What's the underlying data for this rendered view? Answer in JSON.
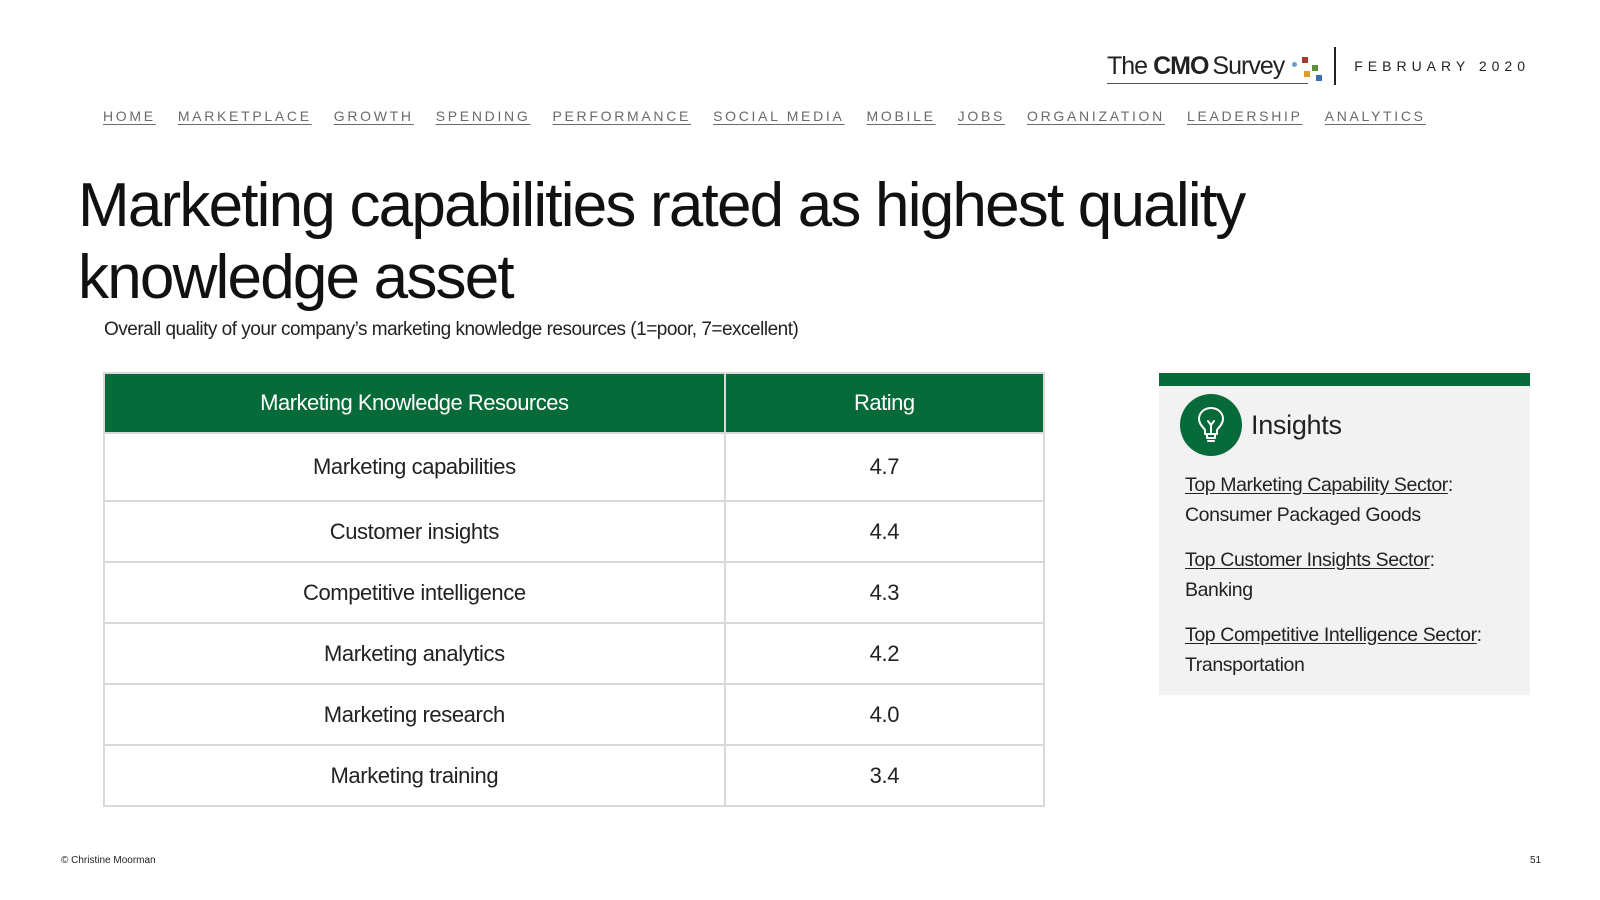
{
  "header": {
    "logo": {
      "the": "The",
      "cmo": "CMO",
      "survey": "Survey"
    },
    "date": "FEBRUARY 2020",
    "logo_dot_colors": [
      "#a33a2a",
      "#6aa0c8",
      "#5b8f3c",
      "#e39b2a",
      "#3c6fb0"
    ]
  },
  "nav": {
    "items": [
      "HOME",
      "MARKETPLACE",
      "GROWTH",
      "SPENDING",
      "PERFORMANCE",
      "SOCIAL MEDIA",
      "MOBILE",
      "JOBS",
      "ORGANIZATION",
      "LEADERSHIP",
      "ANALYTICS"
    ]
  },
  "title": "Marketing capabilities rated as highest quality knowledge asset",
  "subtitle": "Overall quality of your company’s marketing knowledge resources (1=poor, 7=excellent)",
  "table": {
    "headers": [
      "Marketing Knowledge Resources",
      "Rating"
    ],
    "rows": [
      {
        "resource": "Marketing capabilities",
        "rating": "4.7"
      },
      {
        "resource": "Customer insights",
        "rating": "4.4"
      },
      {
        "resource": "Competitive intelligence",
        "rating": "4.3"
      },
      {
        "resource": "Marketing analytics",
        "rating": "4.2"
      },
      {
        "resource": "Marketing research",
        "rating": "4.0"
      },
      {
        "resource": "Marketing training",
        "rating": "3.4"
      }
    ]
  },
  "insights": {
    "title": "Insights",
    "icon": "lightbulb-icon",
    "items": [
      {
        "label": "Top Marketing Capability Sector",
        "value": "Consumer Packaged Goods"
      },
      {
        "label": "Top Customer Insights Sector",
        "value": "Banking"
      },
      {
        "label": "Top Competitive Intelligence Sector",
        "value": "Transportation"
      }
    ]
  },
  "colors": {
    "accent": "#066b39",
    "panel_bg": "#f2f2f2",
    "border": "#d9d9d9"
  },
  "footer": {
    "copyright": "© Christine Moorman",
    "page_number": "51"
  }
}
